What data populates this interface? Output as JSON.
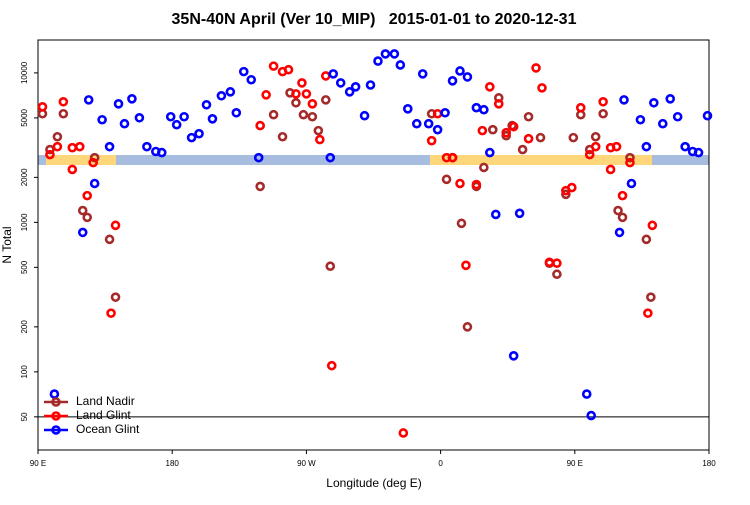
{
  "chart_data": {
    "type": "scatter",
    "title": "35N-40N April (Ver 10_MIP)   2015-01-01 to 2020-12-31",
    "x_label": "Longitude (deg E)",
    "y_label": "N Total",
    "xlim": [
      90,
      540
    ],
    "xticks": [
      {
        "value": 90,
        "label": "90 E"
      },
      {
        "value": 180,
        "label": "180"
      },
      {
        "value": 270,
        "label": "90 W"
      },
      {
        "value": 360,
        "label": "0"
      },
      {
        "value": 450,
        "label": "90 E"
      },
      {
        "value": 540,
        "label": "180"
      }
    ],
    "ylim": [
      30,
      16600
    ],
    "y_log": true,
    "yticks": [
      50,
      100,
      200,
      500,
      1000,
      2000,
      5000,
      10000
    ],
    "reference_line": 50,
    "legend": "lower left",
    "series": [
      {
        "name": "Land Nadir",
        "color": "#a52a2a",
        "x": [
          93,
          98,
          103,
          107,
          120,
          123,
          128,
          138,
          142,
          239,
          248,
          254,
          259,
          263,
          268,
          274,
          278,
          283,
          286,
          354,
          364,
          368,
          374,
          378,
          384,
          389,
          395,
          399,
          404,
          408,
          415,
          419,
          427,
          433,
          438,
          444,
          449,
          454,
          460,
          464,
          469,
          479,
          482,
          487,
          498,
          501
        ],
        "values": [
          5330,
          3070,
          3740,
          5330,
          1200,
          1080,
          2710,
          770,
          316,
          1740,
          5250,
          3740,
          7360,
          6310,
          5250,
          5090,
          4110,
          6600,
          509,
          5330,
          1940,
          2710,
          985,
          200,
          1740,
          2330,
          4170,
          6810,
          3800,
          4440,
          3070,
          5090,
          3690,
          533,
          450,
          1540,
          3690,
          5250,
          3070,
          3740,
          5330,
          1200,
          1080,
          2710,
          770,
          316
        ]
      },
      {
        "name": "Land Glint",
        "color": "#ff0000",
        "x": [
          93,
          98,
          103,
          107,
          113,
          113,
          118,
          123,
          127,
          139,
          142,
          239,
          243,
          248,
          254,
          258,
          263,
          267,
          270,
          274,
          279,
          283,
          287,
          335,
          354,
          358,
          364,
          368,
          373,
          377,
          384,
          388,
          393,
          399,
          404,
          409,
          419,
          424,
          428,
          433,
          438,
          444,
          448,
          454,
          460,
          464,
          469,
          474,
          474,
          478,
          482,
          487,
          499,
          502
        ],
        "values": [
          5930,
          2840,
          3210,
          6410,
          2260,
          3160,
          3210,
          1510,
          2510,
          247,
          955,
          4440,
          7130,
          11100,
          10200,
          10500,
          7240,
          8570,
          7240,
          6210,
          3580,
          9550,
          110,
          39,
          3520,
          5330,
          2710,
          2710,
          1820,
          516,
          1790,
          4110,
          8070,
          6210,
          3980,
          4370,
          3630,
          10800,
          7940,
          541,
          533,
          1630,
          1710,
          5850,
          2840,
          3210,
          6410,
          2260,
          3160,
          3210,
          1510,
          2510,
          247,
          955
        ]
      },
      {
        "name": "Ocean Glint",
        "color": "#0000ff",
        "x": [
          101,
          120,
          124,
          128,
          133,
          138,
          144,
          148,
          153,
          158,
          163,
          169,
          173,
          179,
          183,
          188,
          193,
          198,
          203,
          207,
          213,
          219,
          223,
          228,
          233,
          238,
          286,
          288,
          293,
          299,
          303,
          309,
          313,
          318,
          323,
          329,
          333,
          338,
          344,
          348,
          352,
          358,
          363,
          368,
          373,
          378,
          384,
          389,
          393,
          397,
          409,
          413,
          458,
          461,
          480,
          483,
          488,
          494,
          498,
          503,
          509,
          514,
          519,
          524,
          529,
          533,
          539
        ],
        "values": [
          71,
          857,
          6600,
          1820,
          4860,
          3210,
          6210,
          4570,
          6710,
          5010,
          3210,
          2980,
          2930,
          5090,
          4500,
          5090,
          3690,
          3920,
          6120,
          4930,
          7030,
          7470,
          5410,
          10200,
          9000,
          2710,
          2710,
          9850,
          8570,
          7470,
          8070,
          5170,
          8300,
          12000,
          13400,
          13400,
          11300,
          5750,
          4570,
          9850,
          4570,
          4170,
          5410,
          8850,
          10300,
          9400,
          5850,
          5670,
          2930,
          1130,
          128,
          1150,
          71,
          51,
          857,
          6600,
          1820,
          4860,
          3210,
          6310,
          4570,
          6710,
          5090,
          3210,
          2980,
          2930,
          5170
        ]
      }
    ]
  }
}
